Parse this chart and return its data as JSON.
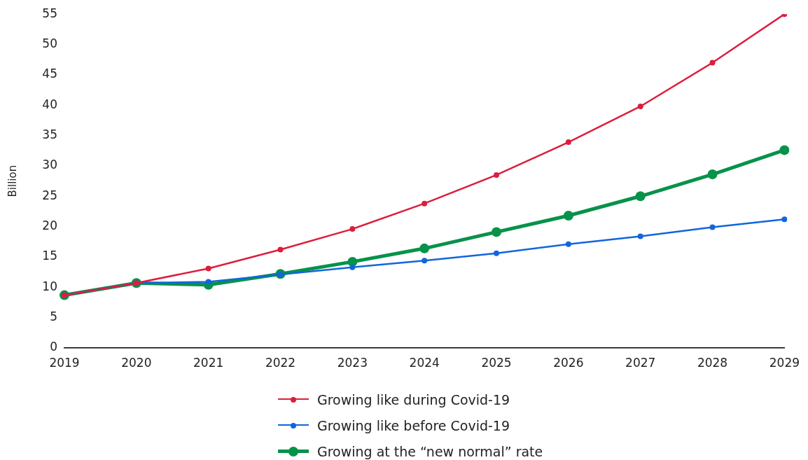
{
  "chart_data": {
    "type": "line",
    "ylabel": "Billion",
    "categories": [
      "2019",
      "2020",
      "2021",
      "2022",
      "2023",
      "2024",
      "2025",
      "2026",
      "2027",
      "2028",
      "2029"
    ],
    "series": [
      {
        "name": "Growing like during Covid-19",
        "color": "#dc1e3c",
        "values": [
          8.7,
          10.7,
          13.1,
          16.2,
          19.6,
          23.8,
          28.5,
          33.9,
          39.8,
          47.0,
          55
        ]
      },
      {
        "name": "Growing like before Covid-19",
        "color": "#1166dd",
        "values": [
          8.7,
          10.7,
          10.9,
          12.1,
          13.3,
          14.4,
          15.6,
          17.1,
          18.4,
          19.9,
          21.2
        ]
      },
      {
        "name": "Growing at the “new normal” rate",
        "color": "#07924a",
        "values": [
          8.7,
          10.7,
          10.4,
          12.2,
          14.2,
          16.4,
          19.1,
          21.8,
          25.0,
          28.6,
          32.6
        ]
      }
    ],
    "ylim": [
      0,
      55
    ],
    "yticks": [
      0,
      5,
      10,
      15,
      20,
      25,
      30,
      35,
      40,
      45,
      50,
      55
    ],
    "grid": false,
    "legend": "bottom",
    "marker": "circle",
    "line_style": "solid"
  }
}
